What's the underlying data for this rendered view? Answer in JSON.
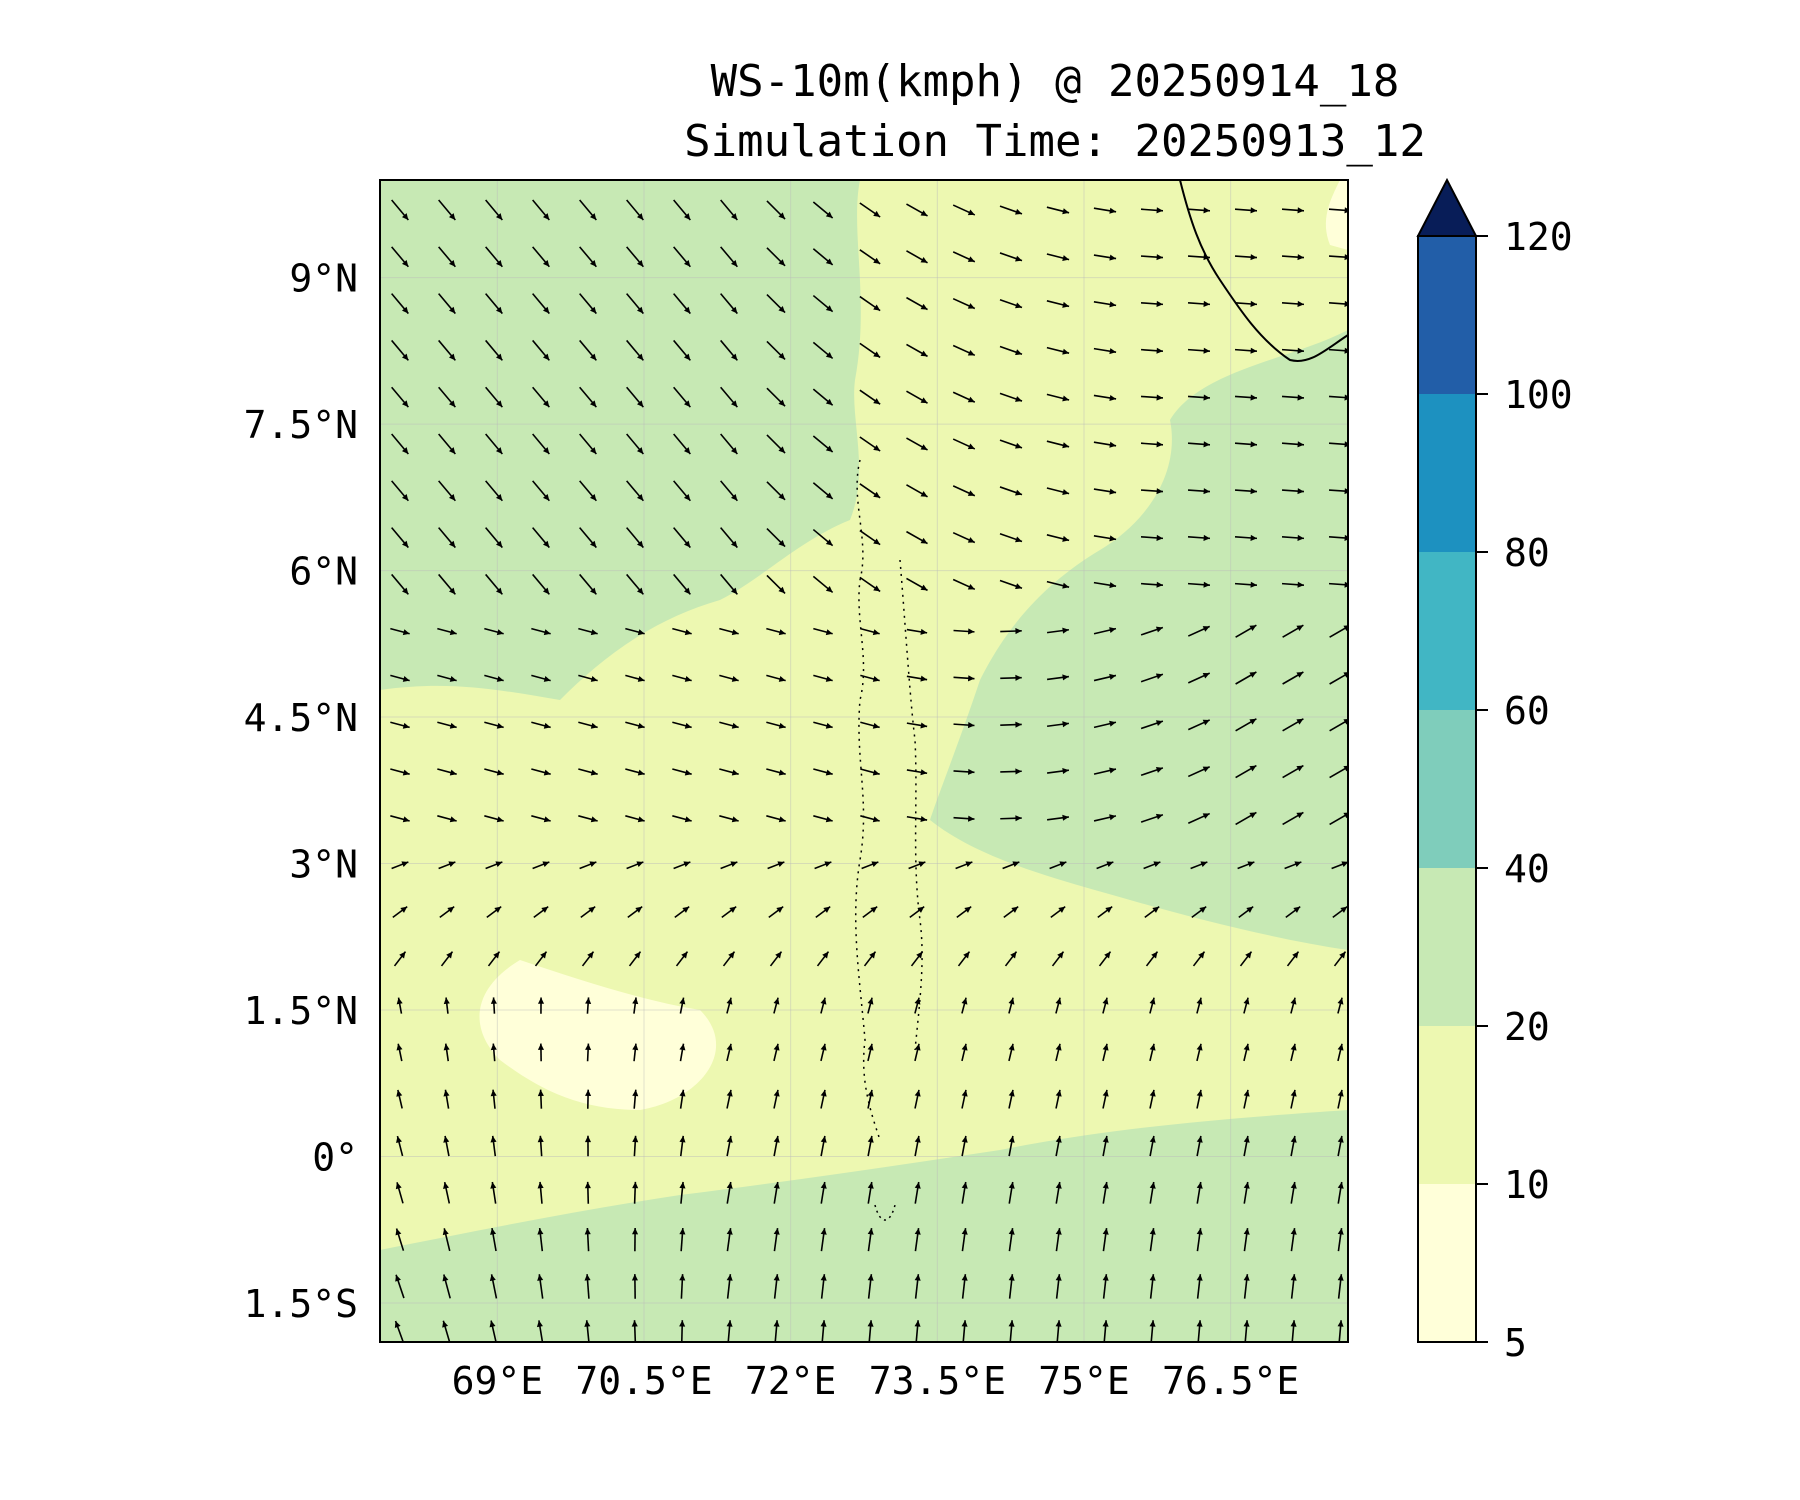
{
  "title_line1": "WS-10m(kmph) @ 20250914_18",
  "title_line2": "Simulation Time: 20250913_12",
  "chart_data": {
    "type": "heatmap",
    "map_extent": {
      "lon": [
        67.8,
        77.7
      ],
      "lat": [
        -1.9,
        10.0
      ]
    },
    "x_ticks": [
      {
        "value": 69.0,
        "label": "69°E"
      },
      {
        "value": 70.5,
        "label": "70.5°E"
      },
      {
        "value": 72.0,
        "label": "72°E"
      },
      {
        "value": 73.5,
        "label": "73.5°E"
      },
      {
        "value": 75.0,
        "label": "75°E"
      },
      {
        "value": 76.5,
        "label": "76.5°E"
      }
    ],
    "y_ticks": [
      {
        "value": 9.0,
        "label": "9°N"
      },
      {
        "value": 7.5,
        "label": "7.5°N"
      },
      {
        "value": 6.0,
        "label": "6°N"
      },
      {
        "value": 4.5,
        "label": "4.5°N"
      },
      {
        "value": 3.0,
        "label": "3°N"
      },
      {
        "value": 1.5,
        "label": "1.5°N"
      },
      {
        "value": 0.0,
        "label": "0°"
      },
      {
        "value": -1.5,
        "label": "1.5°S"
      }
    ],
    "colorbar": {
      "levels": [
        5,
        10,
        20,
        40,
        60,
        80,
        100,
        120
      ],
      "labels": [
        "5",
        "10",
        "20",
        "40",
        "60",
        "80",
        "100",
        "120"
      ],
      "colors": [
        "#ffffd9",
        "#edf8b1",
        "#c7e9b4",
        "#7fcdbb",
        "#41b6c4",
        "#1d91c0",
        "#225ea8",
        "#253494"
      ],
      "extend_color": "#081d58",
      "extend": "max"
    },
    "wind_regions": [
      {
        "region": "north-west",
        "lon": [
          67.8,
          73.0
        ],
        "lat": [
          5.5,
          10.0
        ],
        "direction": "north-westerly (arrows to south-east)",
        "speed_class": "20-40"
      },
      {
        "region": "north-east",
        "lon": [
          73.0,
          77.7
        ],
        "lat": [
          5.0,
          10.0
        ],
        "direction": "westerly (arrows to east)",
        "speed_class": "10-20 and 20-40"
      },
      {
        "region": "central",
        "lon": [
          67.8,
          73.0
        ],
        "lat": [
          2.0,
          5.5
        ],
        "direction": "westerly",
        "speed_class": "10-20"
      },
      {
        "region": "east-central",
        "lon": [
          74.0,
          77.7
        ],
        "lat": [
          2.0,
          5.0
        ],
        "direction": "south-westerly",
        "speed_class": "20-40"
      },
      {
        "region": "south",
        "lon": [
          67.8,
          77.7
        ],
        "lat": [
          -1.9,
          1.5
        ],
        "direction": "southerly (arrows to north)",
        "speed_class": "10-20, 20-40 in far south"
      }
    ]
  }
}
